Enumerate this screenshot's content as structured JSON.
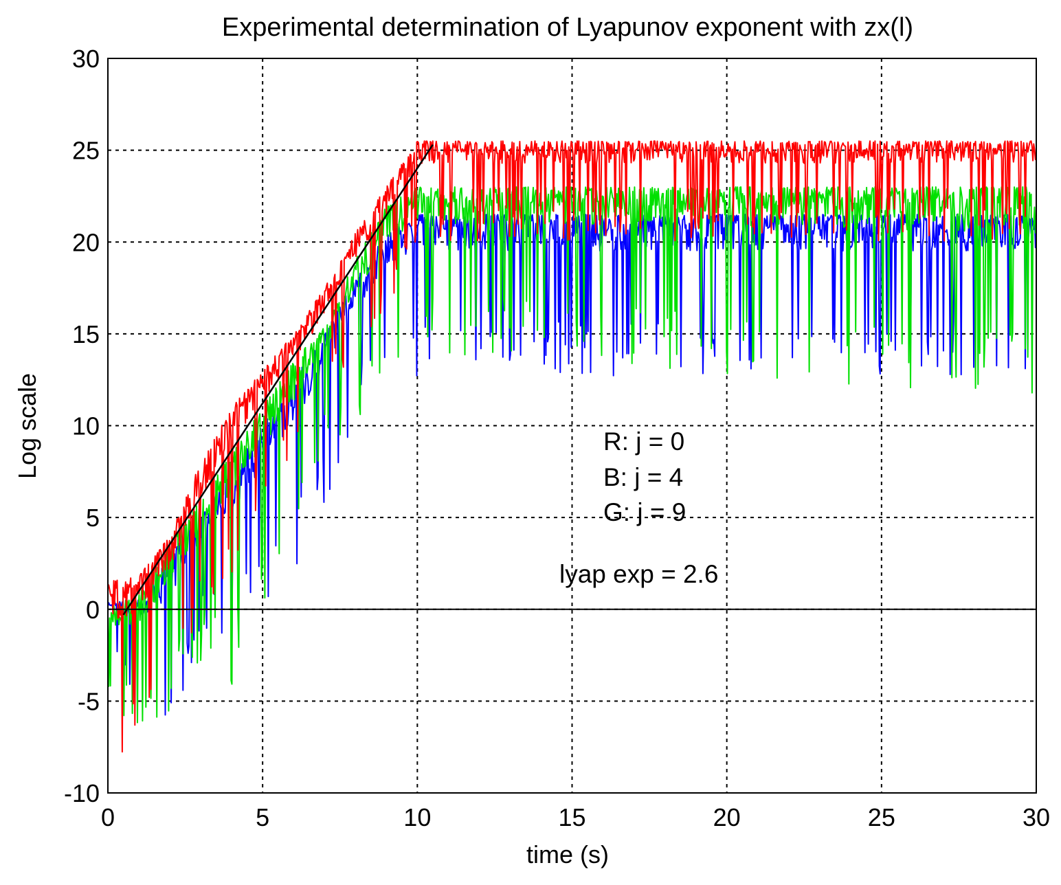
{
  "chart_data": {
    "type": "line",
    "title": "Experimental determination of Lyapunov exponent with zx(l)",
    "xlabel": "time (s)",
    "ylabel": "Log scale",
    "xlim": [
      0,
      30
    ],
    "ylim": [
      -10,
      30
    ],
    "xticks": [
      0,
      5,
      10,
      15,
      20,
      25,
      30
    ],
    "yticks": [
      -10,
      -5,
      0,
      5,
      10,
      15,
      20,
      25,
      30
    ],
    "xtick_labels": [
      "0",
      "5",
      "10",
      "15",
      "20",
      "25",
      "30"
    ],
    "ytick_labels": [
      "-10",
      "-5",
      "0",
      "5",
      "10",
      "15",
      "20",
      "25",
      "30"
    ],
    "grid": true,
    "colors": {
      "R": "#ff0000",
      "B": "#0000ff",
      "G": "#00e000",
      "fit": "#000000",
      "zero": "#000000"
    },
    "series": [
      {
        "name": "R: j = 0",
        "color": "#ff0000",
        "envelope": {
          "x": [
            0,
            1,
            2,
            3,
            4,
            5,
            6,
            7,
            8,
            9,
            10,
            30
          ],
          "upper": [
            1.5,
            1.8,
            4,
            8,
            11,
            13,
            15,
            17.5,
            20.5,
            23,
            25.5,
            25.5
          ],
          "lower": [
            -8,
            -7.5,
            -4,
            -1,
            2,
            5.5,
            8,
            11,
            14,
            16,
            20,
            20
          ]
        }
      },
      {
        "name": "B: j = 4",
        "color": "#0000ff",
        "envelope": {
          "x": [
            0,
            1,
            2,
            3,
            4,
            5,
            6,
            7,
            8,
            9,
            10,
            30
          ],
          "upper": [
            0.5,
            0.5,
            3,
            5,
            7.5,
            10,
            12.5,
            15,
            18,
            20.5,
            21.5,
            21.5
          ],
          "lower": [
            -3,
            -5,
            -7.5,
            -1,
            -2,
            -1,
            2,
            5,
            10,
            13,
            12.5,
            12.5
          ]
        }
      },
      {
        "name": "G: j = 9",
        "color": "#00e000",
        "envelope": {
          "x": [
            0,
            1,
            2,
            3,
            4,
            5,
            6,
            7,
            8,
            9,
            10,
            30
          ],
          "upper": [
            0,
            1,
            3.5,
            6,
            8.5,
            11,
            13.5,
            15.5,
            19,
            22,
            23,
            23
          ],
          "lower": [
            -5,
            -7,
            -5.5,
            -3,
            -4.5,
            0,
            3.5,
            8,
            9.5,
            13.5,
            14,
            11.5
          ]
        }
      }
    ],
    "fit_line": {
      "label": "lyap exp = 2.6",
      "x": [
        0.5,
        10.5
      ],
      "y": [
        -0.3,
        25.3
      ]
    },
    "zero_line": {
      "y": 0
    },
    "annotations": [
      "R: j = 0",
      "B: j = 4",
      "G: j = 9",
      "lyap exp = 2.6"
    ]
  }
}
